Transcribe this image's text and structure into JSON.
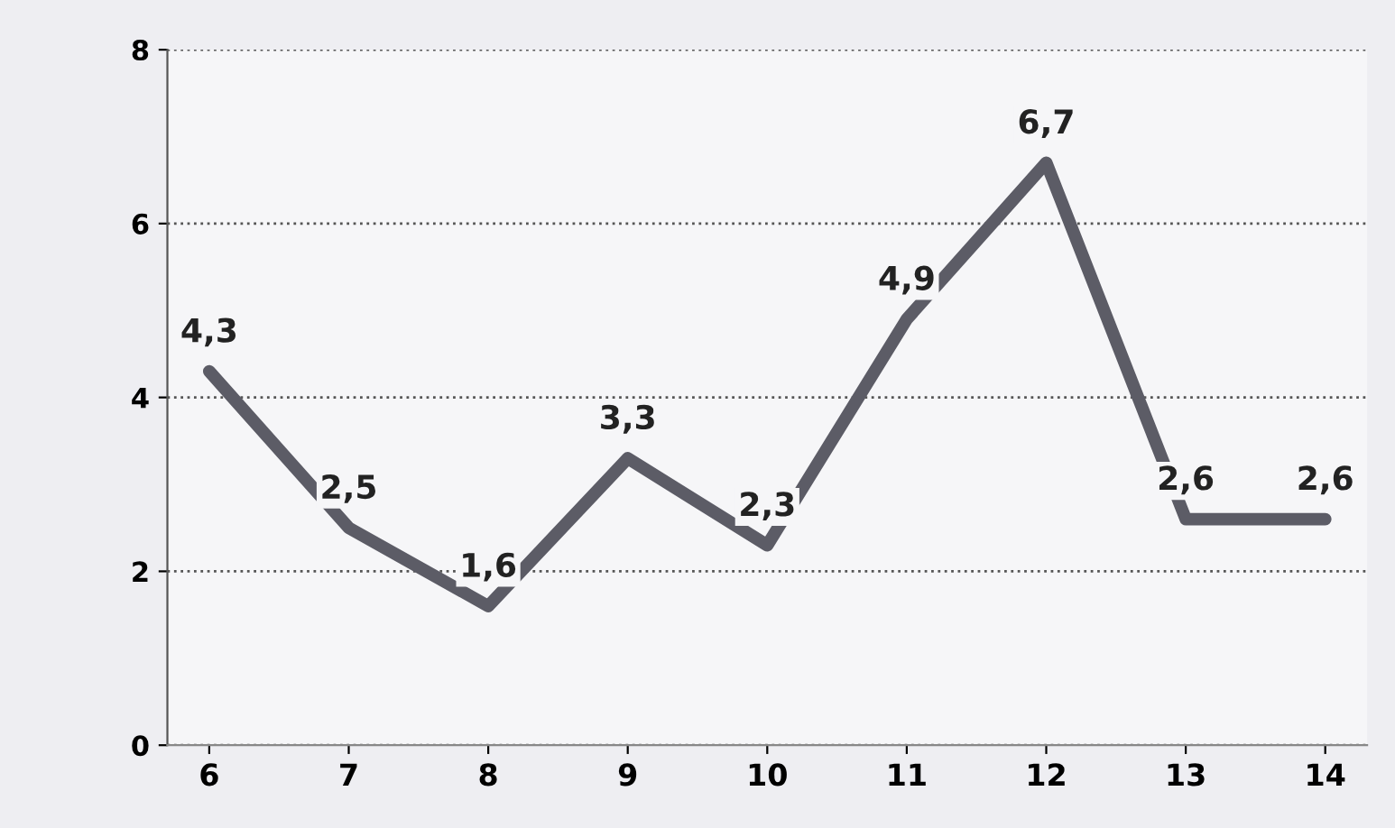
{
  "chart_data": {
    "type": "line",
    "categories": [
      "6",
      "7",
      "8",
      "9",
      "10",
      "11",
      "12",
      "13",
      "14"
    ],
    "series": [
      {
        "color": "#5c5c66",
        "values": [
          4.3,
          2.5,
          1.6,
          3.3,
          2.3,
          4.9,
          6.7,
          2.6,
          2.6
        ]
      }
    ],
    "value_labels": [
      "4,3",
      "2,5",
      "1,6",
      "3,3",
      "2,3",
      "4,9",
      "6,7",
      "2,6",
      "2,6"
    ],
    "ylim": [
      0,
      8
    ],
    "yticks": [
      0,
      2,
      4,
      6,
      8
    ],
    "grid": "y",
    "marker": "none",
    "line_style": "solid",
    "legend": false
  }
}
